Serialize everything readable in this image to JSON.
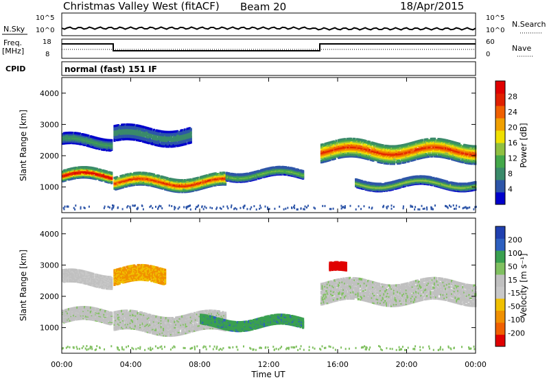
{
  "header": {
    "station": "Christmas Valley West (fitACF)",
    "beam": "Beam 20",
    "date": "18/Apr/2015"
  },
  "top_panels": {
    "noise_left_label": "N.Sky",
    "noise_left_ticks": [
      "10^5",
      "10^0"
    ],
    "noise_right_label": "N.Search",
    "noise_right_ticks": [
      "10^5",
      "10^0"
    ],
    "freq_label_1": "Freq.",
    "freq_label_2": "[MHz]",
    "freq_ticks": [
      "18",
      "8"
    ],
    "nave_label": "Nave",
    "nave_ticks": [
      "60",
      "0"
    ],
    "cpid_label": "CPID",
    "cpid_value": "normal (fast) 151 IF"
  },
  "colors": {
    "power": [
      "#0000cc",
      "#2d55a8",
      "#3a8a6a",
      "#44a84a",
      "#90c040",
      "#f0e000",
      "#f0a000",
      "#f06000",
      "#e02000",
      "#e00000"
    ],
    "velocity": [
      "#2040b0",
      "#2d60c0",
      "#3aa050",
      "#80c060",
      "#c0c0c0",
      "#c8c8c8",
      "#f0c000",
      "#f09000",
      "#f06000",
      "#e00000"
    ]
  },
  "chart_data": [
    {
      "type": "heatmap",
      "name": "power",
      "ylabel": "Slant Range [km]",
      "xlabel": "",
      "x_ticks": [
        "00:00",
        "04:00",
        "08:00",
        "12:00",
        "16:00",
        "20:00",
        "00:00"
      ],
      "y_ticks": [
        1000,
        2000,
        3000,
        4000
      ],
      "ylim": [
        180,
        4500
      ],
      "xlim_hours": [
        0,
        24
      ],
      "colorbar": {
        "label": "Power [dB]",
        "ticks": [
          "4",
          "8",
          "12",
          "16",
          "20",
          "24",
          "28"
        ]
      },
      "echo_bands": [
        {
          "t0": 0.0,
          "t1": 2.9,
          "r_center": 1400,
          "width": 350,
          "peak_db": 28
        },
        {
          "t0": 0.0,
          "t1": 2.9,
          "r_center": 2500,
          "width": 350,
          "peak_db": 10
        },
        {
          "t0": 3.0,
          "t1": 9.5,
          "r_center": 1200,
          "width": 400,
          "peak_db": 26
        },
        {
          "t0": 3.0,
          "t1": 7.5,
          "r_center": 2700,
          "width": 500,
          "peak_db": 8
        },
        {
          "t0": 9.5,
          "t1": 14.0,
          "r_center": 1450,
          "width": 250,
          "peak_db": 12
        },
        {
          "t0": 15.0,
          "t1": 24.0,
          "r_center": 2200,
          "width": 600,
          "peak_db": 24
        },
        {
          "t0": 17.0,
          "t1": 24.0,
          "r_center": 1150,
          "width": 250,
          "peak_db": 14
        }
      ]
    },
    {
      "type": "heatmap",
      "name": "velocity",
      "ylabel": "Slant Range [km]",
      "xlabel": "Time UT",
      "x_ticks": [
        "00:00",
        "04:00",
        "08:00",
        "12:00",
        "16:00",
        "20:00",
        "00:00"
      ],
      "y_ticks": [
        1000,
        2000,
        3000,
        4000
      ],
      "ylim": [
        180,
        4500
      ],
      "xlim_hours": [
        0,
        24
      ],
      "colorbar": {
        "label": "Velocity [m s⁻¹]",
        "ticks": [
          "200",
          "100",
          "50",
          "15",
          "-15",
          "-50",
          "-100",
          "-200"
        ]
      },
      "echo_bands": [
        {
          "t0": 0.0,
          "t1": 2.9,
          "r_center": 1400,
          "width": 400,
          "vel": 0
        },
        {
          "t0": 0.0,
          "t1": 2.9,
          "r_center": 2600,
          "width": 400,
          "vel": -10
        },
        {
          "t0": 3.0,
          "t1": 6.0,
          "r_center": 2700,
          "width": 500,
          "vel": -60
        },
        {
          "t0": 3.0,
          "t1": 9.5,
          "r_center": 1200,
          "width": 600,
          "vel": 0
        },
        {
          "t0": 8.0,
          "t1": 14.0,
          "r_center": 1200,
          "width": 300,
          "vel": 60
        },
        {
          "t0": 15.0,
          "t1": 24.0,
          "r_center": 2200,
          "width": 700,
          "vel": 0
        },
        {
          "t0": 15.5,
          "t1": 16.5,
          "r_center": 2900,
          "width": 250,
          "vel": -220
        }
      ]
    }
  ]
}
